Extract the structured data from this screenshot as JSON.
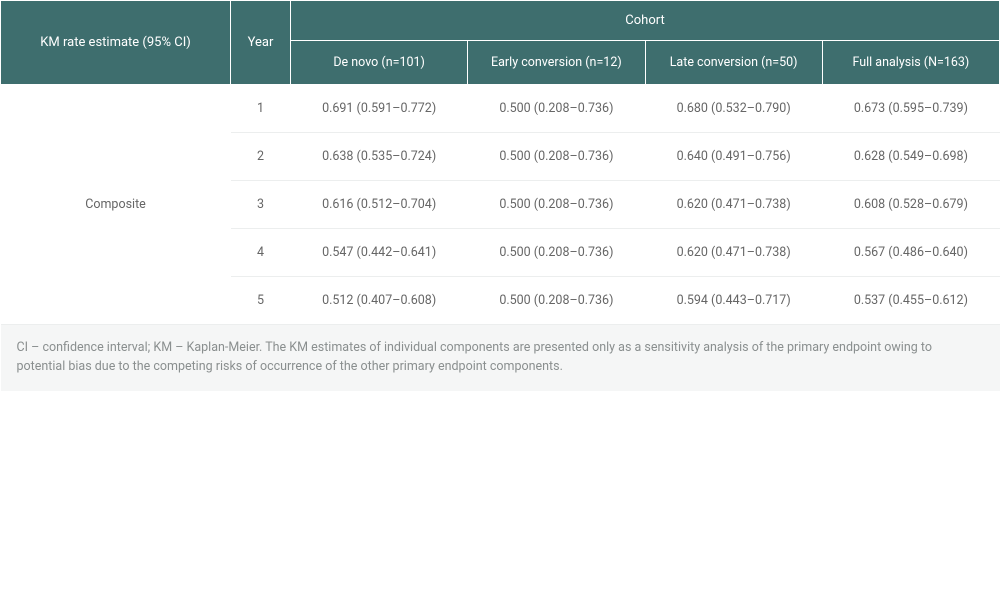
{
  "colors": {
    "header_bg": "#3e6e6e",
    "header_text": "#ffffff",
    "body_text": "#666666",
    "row_border": "#eceeee",
    "footnote_bg": "#f5f6f6",
    "footnote_text": "#8a8f8f"
  },
  "typography": {
    "header_fontsize": 13,
    "cell_fontsize": 12.5,
    "footnote_fontsize": 12.5
  },
  "table": {
    "type": "table",
    "headers": {
      "km_label": "KM rate estimate (95% CI)",
      "year_label": "Year",
      "cohort_label": "Cohort",
      "cohort_cols": [
        "De novo (n=101)",
        "Early conversion (n=12)",
        "Late conversion (n=50)",
        "Full analysis (N=163)"
      ]
    },
    "row_group_label": "Composite",
    "rows": [
      {
        "year": "1",
        "cells": [
          "0.691 (0.591–0.772)",
          "0.500 (0.208–0.736)",
          "0.680 (0.532–0.790)",
          "0.673 (0.595–0.739)"
        ]
      },
      {
        "year": "2",
        "cells": [
          "0.638 (0.535–0.724)",
          "0.500 (0.208–0.736)",
          "0.640 (0.491–0.756)",
          "0.628 (0.549–0.698)"
        ]
      },
      {
        "year": "3",
        "cells": [
          "0.616 (0.512–0.704)",
          "0.500 (0.208–0.736)",
          "0.620 (0.471–0.738)",
          "0.608 (0.528–0.679)"
        ]
      },
      {
        "year": "4",
        "cells": [
          "0.547 (0.442–0.641)",
          "0.500 (0.208–0.736)",
          "0.620 (0.471–0.738)",
          "0.567 (0.486–0.640)"
        ]
      },
      {
        "year": "5",
        "cells": [
          "0.512 (0.407–0.608)",
          "0.500 (0.208–0.736)",
          "0.594 (0.443–0.717)",
          "0.537 (0.455–0.612)"
        ]
      }
    ],
    "footnote": "CI – confidence interval; KM – Kaplan-Meier. The KM estimates of individual components are presented only as a sensitivity analysis of the primary endpoint owing to potential bias due to the competing risks of occurrence of the other primary endpoint components."
  }
}
